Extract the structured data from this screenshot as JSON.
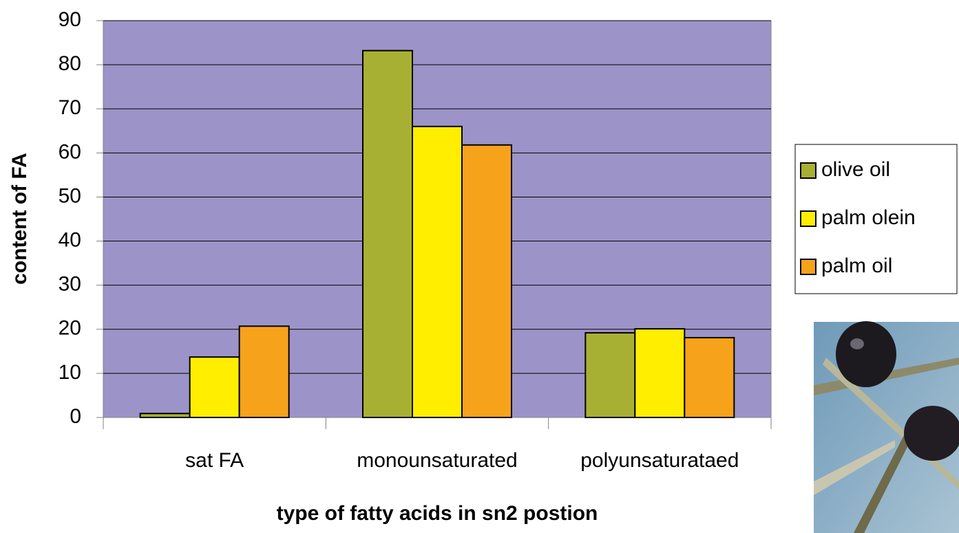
{
  "chart_data": {
    "type": "bar",
    "x_label": "type of fatty acids in sn2 postion",
    "y_label": "content of FA",
    "categories": [
      "sat FA",
      "monounsaturated",
      "polyunsaturataed"
    ],
    "series": [
      {
        "name": "olive oil",
        "color": "#a8b034",
        "values": [
          0.9,
          83.2,
          19.2
        ]
      },
      {
        "name": "palm olein",
        "color": "#ffee00",
        "values": [
          13.7,
          66,
          20.1
        ]
      },
      {
        "name": "palm oil",
        "color": "#f7a21b",
        "values": [
          20.7,
          61.8,
          18.1
        ]
      }
    ],
    "ylim": [
      0,
      90
    ],
    "yticks": [
      0,
      10,
      20,
      30,
      40,
      50,
      60,
      70,
      80,
      90
    ],
    "grid": true,
    "legend": "right",
    "plot_background": "#9c94c8"
  }
}
